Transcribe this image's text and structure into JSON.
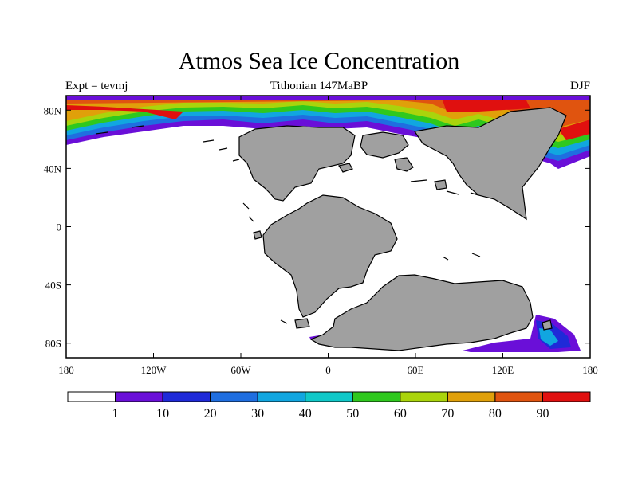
{
  "title": "Atmos Sea Ice Concentration",
  "experiment_label": "Expt = tevmj",
  "period_label": "Tithonian 147MaBP",
  "season_label": "DJF",
  "axes": {
    "x_ticks": [
      {
        "value": -180,
        "label": "180"
      },
      {
        "value": -120,
        "label": "120W"
      },
      {
        "value": -60,
        "label": "60W"
      },
      {
        "value": 0,
        "label": "0"
      },
      {
        "value": 60,
        "label": "60E"
      },
      {
        "value": 120,
        "label": "120E"
      },
      {
        "value": 180,
        "label": "180"
      }
    ],
    "y_ticks": [
      {
        "value": 80,
        "label": "80N"
      },
      {
        "value": 40,
        "label": "40N"
      },
      {
        "value": 0,
        "label": "0"
      },
      {
        "value": -40,
        "label": "40S"
      },
      {
        "value": -80,
        "label": "80S"
      }
    ],
    "lon_range": [
      -180,
      180
    ],
    "lat_range": [
      -90,
      90
    ]
  },
  "colorbar": {
    "colors": [
      "#ffffff",
      "#6a0fd8",
      "#1f2ad8",
      "#1f6ee0",
      "#11a6e0",
      "#10c8c8",
      "#2fc81e",
      "#aad40c",
      "#e0a00a",
      "#e0540f",
      "#e0100f"
    ],
    "labels": [
      "1",
      "10",
      "20",
      "30",
      "40",
      "50",
      "60",
      "70",
      "80",
      "90"
    ]
  },
  "colors": {
    "land": "#a0a0a0",
    "coast": "#000000",
    "ocean": "#ffffff"
  }
}
